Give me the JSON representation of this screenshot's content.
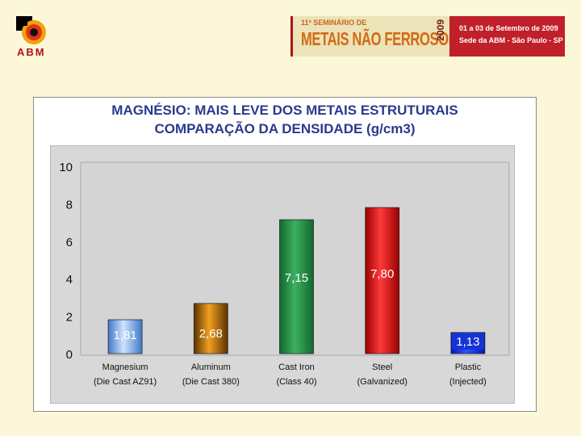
{
  "header": {
    "logo_text": "ABM",
    "banner_small": "11º SEMINÁRIO DE",
    "banner_title": "METAIS NÃO FERROSOS",
    "banner_year": "2009",
    "banner_dates": "01 a 03 de Setembro de 2009",
    "banner_place": "Sede da ABM - São Paulo - SP"
  },
  "slide": {
    "title_line1": "MAGNÉSIO: MAIS LEVE DOS METAIS ESTRUTURAIS",
    "title_line2": "COMPARAÇÃO DA DENSIDADE (g/cm3)"
  },
  "chart_data": {
    "type": "bar",
    "title": "MAGNÉSIO: MAIS LEVE DOS METAIS ESTRUTURAIS COMPARAÇÃO DA DENSIDADE (g/cm3)",
    "categories": [
      [
        "Magnesium",
        "(Die Cast AZ91)"
      ],
      [
        "Aluminum",
        "(Die Cast 380)"
      ],
      [
        "Cast Iron",
        "(Class 40)"
      ],
      [
        "Steel",
        "(Galvanized)"
      ],
      [
        "Plastic",
        "(Injected)"
      ]
    ],
    "values": [
      1.81,
      2.68,
      7.15,
      7.8,
      1.13
    ],
    "value_labels": [
      "1,81",
      "2,68",
      "7,15",
      "7,80",
      "1,13"
    ],
    "ylim": [
      0,
      10
    ],
    "yticks": [
      "0",
      "2",
      "4",
      "6",
      "8",
      "10"
    ],
    "grid": false,
    "colors": {
      "bars": [
        {
          "light": "#cfe3ff",
          "dark": "#3f78c8"
        },
        {
          "light": "#f0a020",
          "dark": "#5a3200"
        },
        {
          "light": "#3db060",
          "dark": "#0f6a2e"
        },
        {
          "light": "#ff3a3a",
          "dark": "#9a0000"
        },
        {
          "light": "#2a55ff",
          "dark": "#0018b0"
        }
      ],
      "label_text": [
        "#ffffff",
        "#ffffff",
        "#ffffff",
        "#ffffff",
        "#ffffff"
      ],
      "label_bg_plastic": "#1533d6",
      "panel": "#d8d8d8"
    }
  }
}
